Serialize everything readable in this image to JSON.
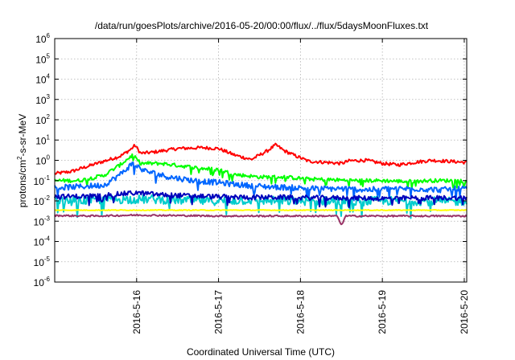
{
  "chart_data": {
    "type": "line",
    "title": "/data/run/goesPlots/archive/2016-05-20/00:00/flux/../flux/5daysMoonFluxes.txt",
    "xlabel": "Coordinated Universal Time (UTC)",
    "ylabel": "protons/cm²-s-sr-MeV",
    "ylabel_parts": {
      "pre": "protons/cm",
      "sup": "2",
      "post": "-s-sr-MeV"
    },
    "yscale": "log",
    "ylim_exp": [
      -6,
      6
    ],
    "y_ticks": [
      {
        "base": "10",
        "exp": "6"
      },
      {
        "base": "10",
        "exp": "5"
      },
      {
        "base": "10",
        "exp": "4"
      },
      {
        "base": "10",
        "exp": "3"
      },
      {
        "base": "10",
        "exp": "2"
      },
      {
        "base": "10",
        "exp": "1"
      },
      {
        "base": "10",
        "exp": "0"
      },
      {
        "base": "10",
        "exp": "-1"
      },
      {
        "base": "10",
        "exp": "-2"
      },
      {
        "base": "10",
        "exp": "-3"
      },
      {
        "base": "10",
        "exp": "-4"
      },
      {
        "base": "10",
        "exp": "-5"
      },
      {
        "base": "10",
        "exp": "-6"
      }
    ],
    "x_tick_labels": [
      "2016-5-16",
      "2016-5-17",
      "2016-5-18",
      "2016-5-19",
      "2016-5-20"
    ],
    "xlim_days": [
      15.0,
      20.03
    ],
    "grid": true,
    "series": [
      {
        "color": "#ff0000",
        "points": [
          [
            15.0,
            0.22
          ],
          [
            15.2,
            0.28
          ],
          [
            15.4,
            0.5
          ],
          [
            15.6,
            0.9
          ],
          [
            15.8,
            1.6
          ],
          [
            15.93,
            3.5
          ],
          [
            15.98,
            5.5
          ],
          [
            16.05,
            2.2
          ],
          [
            16.2,
            2.5
          ],
          [
            16.5,
            3.8
          ],
          [
            16.8,
            4.2
          ],
          [
            17.0,
            3.8
          ],
          [
            17.2,
            1.8
          ],
          [
            17.4,
            1.1
          ],
          [
            17.6,
            3.0
          ],
          [
            17.7,
            5.8
          ],
          [
            17.8,
            3.0
          ],
          [
            17.95,
            1.6
          ],
          [
            18.1,
            0.9
          ],
          [
            18.3,
            0.8
          ],
          [
            18.5,
            0.7
          ],
          [
            18.6,
            0.95
          ],
          [
            18.8,
            1.0
          ],
          [
            19.0,
            0.7
          ],
          [
            19.2,
            0.6
          ],
          [
            19.4,
            0.8
          ],
          [
            19.6,
            1.0
          ],
          [
            19.8,
            0.9
          ],
          [
            20.0,
            0.8
          ]
        ]
      },
      {
        "color": "#00ff00",
        "points": [
          [
            15.0,
            0.1
          ],
          [
            15.3,
            0.1
          ],
          [
            15.6,
            0.18
          ],
          [
            15.8,
            0.6
          ],
          [
            15.95,
            1.8
          ],
          [
            16.05,
            0.7
          ],
          [
            16.3,
            0.7
          ],
          [
            16.6,
            0.5
          ],
          [
            16.8,
            0.4
          ],
          [
            17.0,
            0.35
          ],
          [
            17.2,
            0.2
          ],
          [
            17.5,
            0.15
          ],
          [
            17.8,
            0.15
          ],
          [
            18.1,
            0.12
          ],
          [
            18.4,
            0.11
          ],
          [
            18.7,
            0.1
          ],
          [
            19.0,
            0.1
          ],
          [
            19.3,
            0.09
          ],
          [
            19.6,
            0.1
          ],
          [
            20.0,
            0.1
          ]
        ]
      },
      {
        "color": "#0066ff",
        "points": [
          [
            15.0,
            0.045
          ],
          [
            15.3,
            0.05
          ],
          [
            15.6,
            0.06
          ],
          [
            15.8,
            0.2
          ],
          [
            15.95,
            0.7
          ],
          [
            16.1,
            0.3
          ],
          [
            16.4,
            0.15
          ],
          [
            16.7,
            0.1
          ],
          [
            17.0,
            0.08
          ],
          [
            17.3,
            0.06
          ],
          [
            17.6,
            0.05
          ],
          [
            17.9,
            0.045
          ],
          [
            18.2,
            0.04
          ],
          [
            18.5,
            0.04
          ],
          [
            18.8,
            0.035
          ],
          [
            19.1,
            0.04
          ],
          [
            19.4,
            0.04
          ],
          [
            19.7,
            0.035
          ],
          [
            20.0,
            0.04
          ]
        ]
      },
      {
        "color": "#00cccc",
        "points": [
          [
            15.0,
            0.01
          ],
          [
            15.3,
            0.01
          ],
          [
            15.6,
            0.012
          ],
          [
            15.9,
            0.012
          ],
          [
            16.2,
            0.012
          ],
          [
            16.5,
            0.011
          ],
          [
            16.8,
            0.01
          ],
          [
            17.1,
            0.01
          ],
          [
            17.4,
            0.011
          ],
          [
            17.7,
            0.01
          ],
          [
            18.0,
            0.01
          ],
          [
            18.3,
            0.01
          ],
          [
            18.6,
            0.009
          ],
          [
            18.9,
            0.01
          ],
          [
            19.2,
            0.01
          ],
          [
            19.5,
            0.01
          ],
          [
            19.8,
            0.009
          ],
          [
            20.0,
            0.01
          ]
        ]
      },
      {
        "color": "#0000bb",
        "points": [
          [
            15.0,
            0.016
          ],
          [
            15.4,
            0.017
          ],
          [
            15.8,
            0.022
          ],
          [
            16.0,
            0.025
          ],
          [
            16.3,
            0.02
          ],
          [
            16.6,
            0.018
          ],
          [
            17.0,
            0.016
          ],
          [
            17.4,
            0.015
          ],
          [
            17.8,
            0.015
          ],
          [
            18.2,
            0.014
          ],
          [
            18.6,
            0.014
          ],
          [
            19.0,
            0.013
          ],
          [
            19.4,
            0.014
          ],
          [
            19.8,
            0.014
          ],
          [
            20.0,
            0.014
          ]
        ]
      },
      {
        "color": "#ffff00",
        "points": [
          [
            15.0,
            0.0035
          ],
          [
            16.0,
            0.0035
          ],
          [
            17.0,
            0.0035
          ],
          [
            18.0,
            0.0035
          ],
          [
            19.0,
            0.0035
          ],
          [
            20.0,
            0.0035
          ]
        ]
      },
      {
        "color": "#993366",
        "points": [
          [
            15.0,
            0.0019
          ],
          [
            15.5,
            0.0018
          ],
          [
            16.0,
            0.002
          ],
          [
            16.5,
            0.0019
          ],
          [
            17.0,
            0.0018
          ],
          [
            17.5,
            0.0018
          ],
          [
            18.0,
            0.0018
          ],
          [
            18.45,
            0.0018
          ],
          [
            18.5,
            0.0006
          ],
          [
            18.55,
            0.0018
          ],
          [
            19.0,
            0.0018
          ],
          [
            19.5,
            0.0018
          ],
          [
            20.0,
            0.0018
          ]
        ]
      }
    ]
  }
}
